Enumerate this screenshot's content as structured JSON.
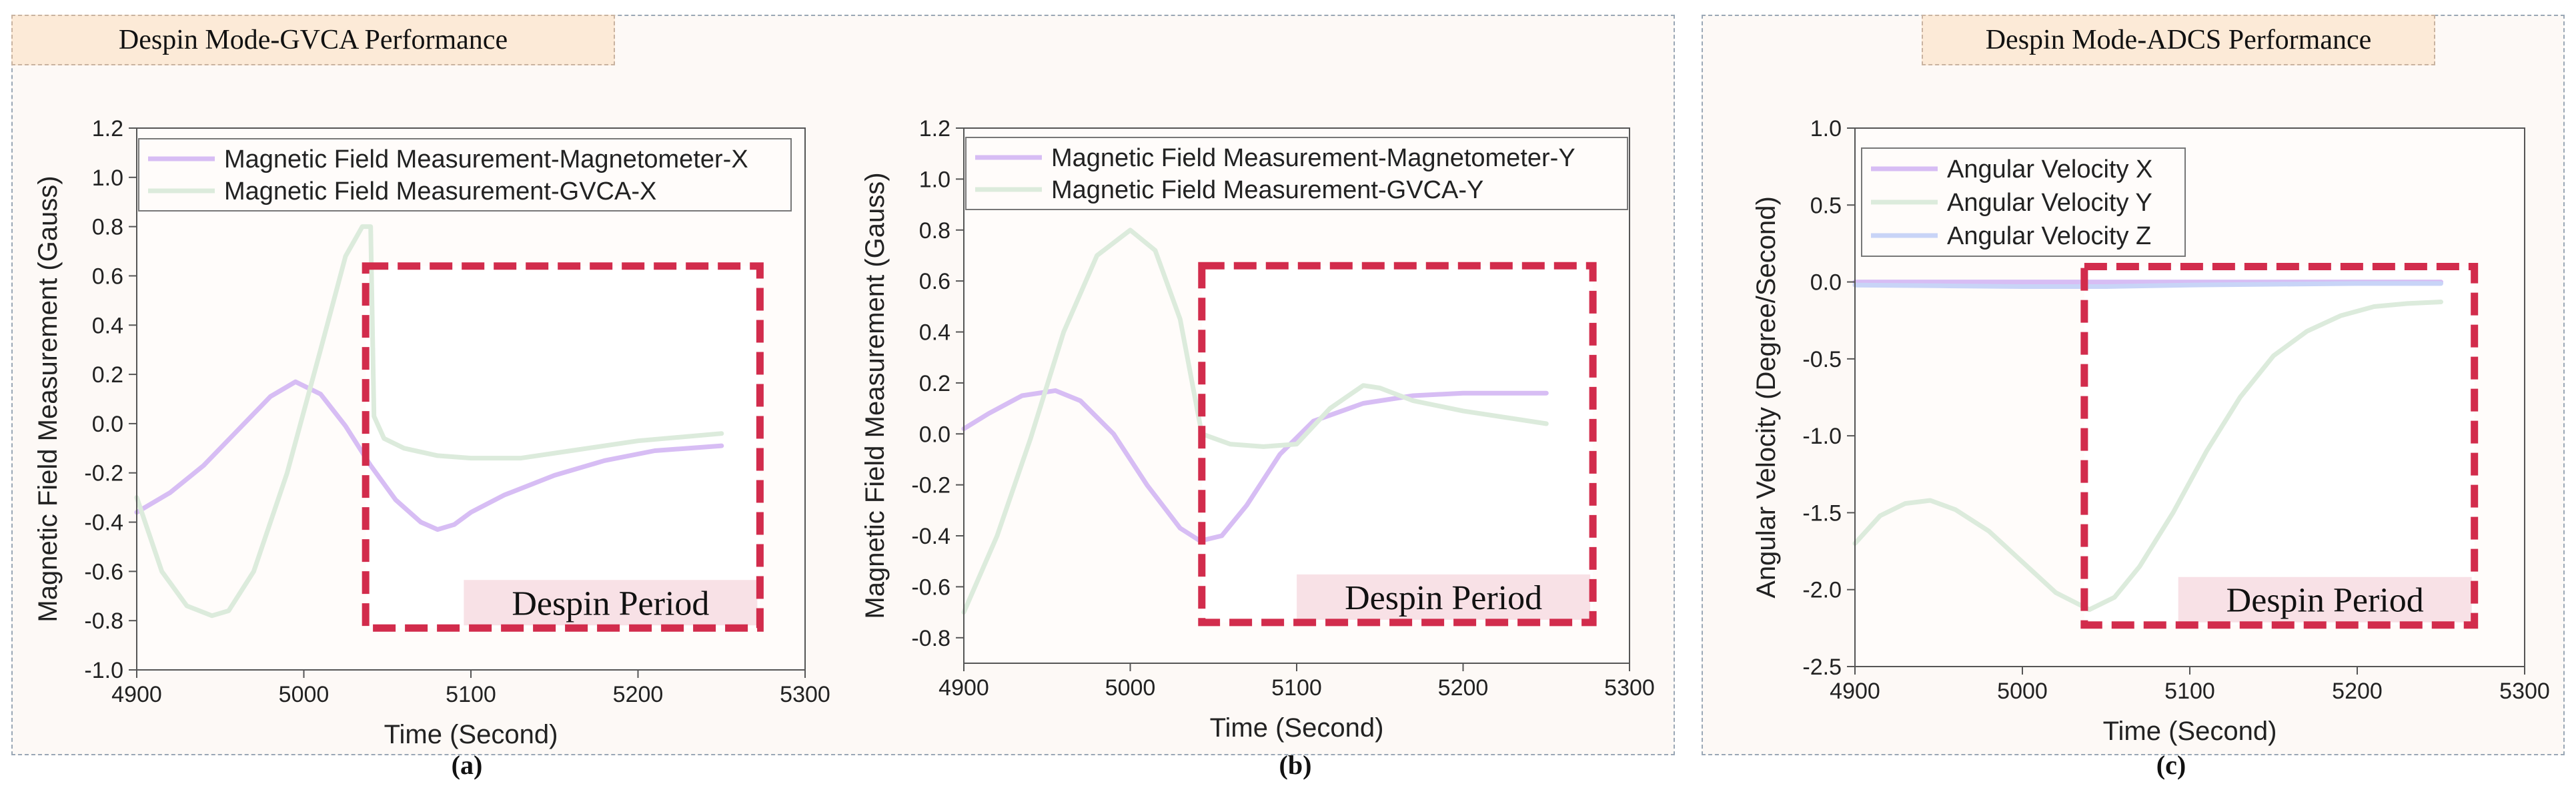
{
  "groups": [
    {
      "title": "Despin Mode-GVCA Performance"
    },
    {
      "title": "Despin Mode-ADCS Performance"
    }
  ],
  "annotation_label": "Despin Period",
  "colors": {
    "purple": "#d7bdf4",
    "green": "#dcebdc",
    "blue": "#c8d4f7",
    "dash": "#d22c4c",
    "label_bg": "#f8e1e6",
    "highlight_bg": "#ffffff"
  },
  "chart_data": [
    {
      "id": "a",
      "caption": "(a)",
      "type": "line",
      "xlabel": "Time (Second)",
      "ylabel": "Magnetic Field Measurement (Gauss)",
      "xlim": [
        4900,
        5300
      ],
      "ylim": [
        -1.0,
        1.2
      ],
      "xticks": [
        4900,
        5000,
        5100,
        5200,
        5300
      ],
      "yticks": [
        -1.0,
        -0.8,
        -0.6,
        -0.4,
        -0.2,
        0.0,
        0.2,
        0.4,
        0.6,
        0.8,
        1.0,
        1.2
      ],
      "ydecimals": 1,
      "despin": {
        "x0": 5037,
        "x1": 5273,
        "y0": -0.83,
        "y1": 0.64
      },
      "series": [
        {
          "name": "Magnetic Field Measurement-Magnetometer-X",
          "color": "#d7bdf4",
          "x": [
            4900,
            4920,
            4940,
            4960,
            4980,
            4995,
            5010,
            5025,
            5040,
            5055,
            5070,
            5080,
            5090,
            5100,
            5120,
            5150,
            5180,
            5210,
            5250
          ],
          "y": [
            -0.36,
            -0.28,
            -0.17,
            -0.03,
            0.11,
            0.17,
            0.12,
            -0.01,
            -0.17,
            -0.31,
            -0.4,
            -0.43,
            -0.41,
            -0.36,
            -0.29,
            -0.21,
            -0.15,
            -0.11,
            -0.09
          ]
        },
        {
          "name": "Magnetic Field Measurement-GVCA-X",
          "color": "#dcebdc",
          "x": [
            4900,
            4915,
            4930,
            4945,
            4955,
            4970,
            4990,
            5010,
            5025,
            5035,
            5040,
            5042,
            5048,
            5060,
            5080,
            5100,
            5130,
            5160,
            5200,
            5250
          ],
          "y": [
            -0.3,
            -0.6,
            -0.74,
            -0.78,
            -0.76,
            -0.6,
            -0.2,
            0.3,
            0.68,
            0.8,
            0.8,
            0.03,
            -0.06,
            -0.1,
            -0.13,
            -0.14,
            -0.14,
            -0.11,
            -0.07,
            -0.04
          ]
        }
      ]
    },
    {
      "id": "b",
      "caption": "(b)",
      "type": "line",
      "xlabel": "Time (Second)",
      "ylabel": "Magnetic Field Measurement (Gauss)",
      "xlim": [
        4900,
        5300
      ],
      "ylim": [
        -0.9,
        1.2
      ],
      "xticks": [
        4900,
        5000,
        5100,
        5200,
        5300
      ],
      "yticks": [
        -0.8,
        -0.6,
        -0.4,
        -0.2,
        0.0,
        0.2,
        0.4,
        0.6,
        0.8,
        1.0,
        1.2
      ],
      "ydecimals": 1,
      "despin": {
        "x0": 5043,
        "x1": 5278,
        "y0": -0.74,
        "y1": 0.66
      },
      "series": [
        {
          "name": "Magnetic Field Measurement-Magnetometer-Y",
          "color": "#d7bdf4",
          "x": [
            4900,
            4915,
            4935,
            4955,
            4970,
            4990,
            5010,
            5030,
            5042,
            5055,
            5070,
            5090,
            5110,
            5140,
            5170,
            5200,
            5250
          ],
          "y": [
            0.02,
            0.08,
            0.15,
            0.17,
            0.13,
            0.0,
            -0.2,
            -0.37,
            -0.42,
            -0.4,
            -0.28,
            -0.08,
            0.05,
            0.12,
            0.15,
            0.16,
            0.16
          ]
        },
        {
          "name": "Magnetic Field Measurement-GVCA-Y",
          "color": "#dcebdc",
          "x": [
            4900,
            4920,
            4940,
            4960,
            4980,
            5000,
            5015,
            5030,
            5043,
            5060,
            5080,
            5100,
            5120,
            5140,
            5150,
            5170,
            5200,
            5250
          ],
          "y": [
            -0.7,
            -0.4,
            -0.02,
            0.4,
            0.7,
            0.8,
            0.72,
            0.45,
            0.0,
            -0.04,
            -0.05,
            -0.04,
            0.1,
            0.19,
            0.18,
            0.13,
            0.09,
            0.04
          ]
        }
      ]
    },
    {
      "id": "c",
      "caption": "(c)",
      "type": "line",
      "xlabel": "Time (Second)",
      "ylabel": "Angular Velocity (Degree/Second)",
      "xlim": [
        4900,
        5300
      ],
      "ylim": [
        -2.5,
        1.0
      ],
      "xticks": [
        4900,
        5000,
        5100,
        5200,
        5300
      ],
      "yticks": [
        -2.5,
        -2.0,
        -1.5,
        -1.0,
        -0.5,
        0.0,
        0.5,
        1.0
      ],
      "ydecimals": 1,
      "despin": {
        "x0": 5037,
        "x1": 5270,
        "y0": -2.23,
        "y1": 0.1
      },
      "series": [
        {
          "name": "Angular Velocity X",
          "color": "#d7bdf4",
          "x": [
            4900,
            5000,
            5100,
            5200,
            5250
          ],
          "y": [
            0.0,
            0.0,
            0.0,
            0.0,
            0.0
          ]
        },
        {
          "name": "Angular Velocity Y",
          "color": "#dcebdc",
          "x": [
            4900,
            4915,
            4930,
            4945,
            4960,
            4980,
            5000,
            5020,
            5040,
            5055,
            5070,
            5090,
            5110,
            5130,
            5150,
            5170,
            5190,
            5210,
            5230,
            5250
          ],
          "y": [
            -1.7,
            -1.52,
            -1.44,
            -1.42,
            -1.48,
            -1.62,
            -1.82,
            -2.02,
            -2.13,
            -2.05,
            -1.85,
            -1.5,
            -1.1,
            -0.75,
            -0.48,
            -0.32,
            -0.22,
            -0.16,
            -0.14,
            -0.13
          ]
        },
        {
          "name": "Angular Velocity Z",
          "color": "#c8d4f7",
          "x": [
            4900,
            4950,
            5000,
            5050,
            5100,
            5150,
            5200,
            5250
          ],
          "y": [
            -0.02,
            -0.025,
            -0.03,
            -0.03,
            -0.02,
            -0.015,
            -0.01,
            -0.01
          ]
        }
      ]
    }
  ]
}
